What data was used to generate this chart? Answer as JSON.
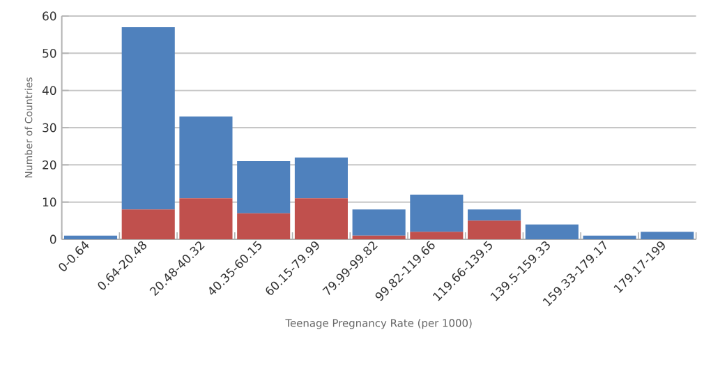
{
  "chart_data": {
    "type": "bar",
    "stacked": true,
    "xlabel": "Teenage Pregnancy Rate (per 1000)",
    "ylabel": "Number of Countries",
    "categories": [
      "0-0.64",
      "0.64-20.48",
      "20.48-40.32",
      "40.35-60.15",
      "60.15-79.99",
      "79.99-99.82",
      "99.82-119.66",
      "119.66-139.5",
      "139.5-159.33",
      "159.33-179.17",
      "179.17-199"
    ],
    "series": [
      {
        "color": "#c0504d",
        "values": [
          0,
          8,
          11,
          7,
          11,
          1,
          2,
          5,
          0,
          0,
          0
        ]
      },
      {
        "color": "#4f81bd",
        "values": [
          1,
          49,
          22,
          14,
          11,
          7,
          10,
          3,
          4,
          1,
          2
        ]
      }
    ],
    "ylim": [
      0,
      60
    ],
    "yticks": [
      0,
      10,
      20,
      30,
      40,
      50,
      60
    ],
    "grid": "y"
  }
}
